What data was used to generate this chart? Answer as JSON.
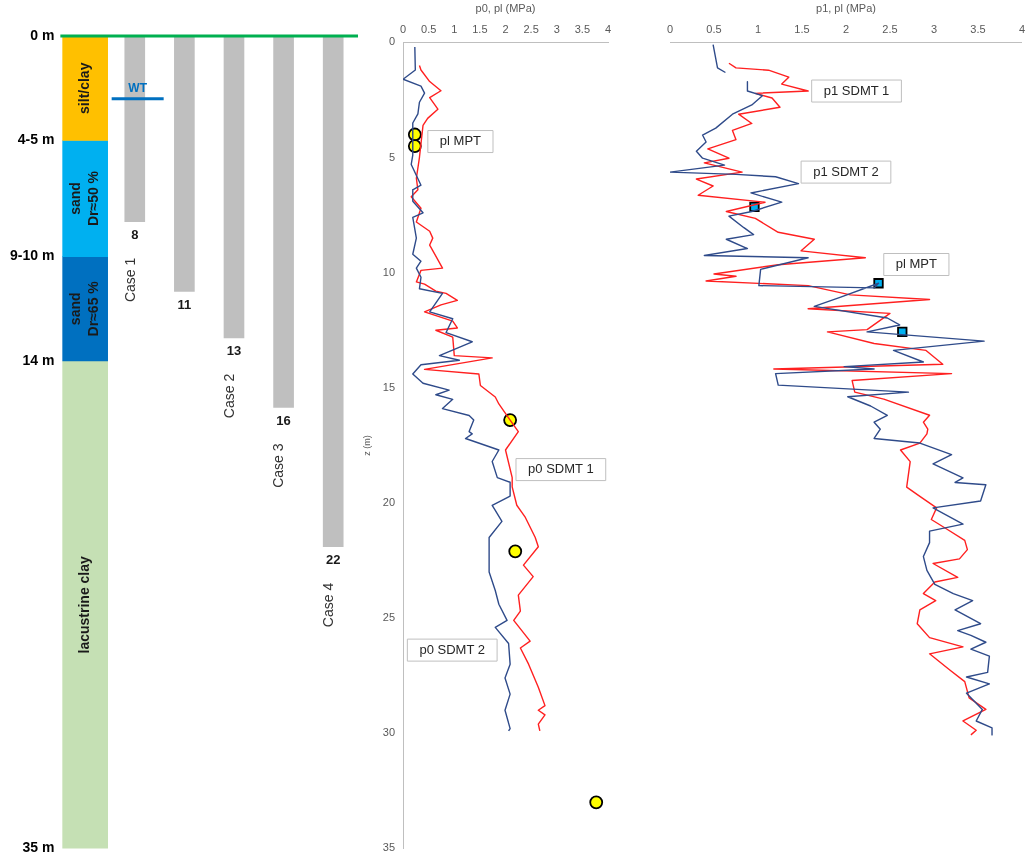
{
  "chart_data": [
    {
      "type": "bar",
      "categories": [
        null,
        "Case 1",
        null,
        "Case 2",
        "Case 3",
        "Case 4"
      ],
      "stacked": true,
      "series": [
        {
          "name": "silt/clay",
          "color": "#ffc000",
          "values": [
            4.5,
            null,
            null,
            null,
            null,
            null
          ]
        },
        {
          "name": "sand Dr≈50 %",
          "color": "#00b0f0",
          "values": [
            5,
            null,
            null,
            null,
            null,
            null
          ]
        },
        {
          "name": "sand Dr≈65 %",
          "color": "#0070c0",
          "values": [
            4.5,
            null,
            null,
            null,
            null,
            null
          ]
        },
        {
          "name": "lacustrine clay",
          "color": "#c5e0b4",
          "values": [
            21,
            null,
            null,
            null,
            null,
            null
          ]
        },
        {
          "color": "#bfbfbf",
          "values": [
            null,
            8,
            11,
            13,
            16,
            22
          ],
          "value_labels": [
            null,
            "8",
            "11",
            "13",
            "16",
            "22"
          ]
        }
      ],
      "ylim": [
        35,
        0
      ],
      "yticks": [
        {
          "value": 0,
          "label": "0 m"
        },
        {
          "value": 4.5,
          "label": "4-5 m"
        },
        {
          "value": 9.5,
          "label": "9-10 m"
        },
        {
          "value": 14,
          "label": "14 m"
        },
        {
          "value": 35,
          "label": "35 m"
        }
      ],
      "ref_lines": [
        {
          "axis": "y",
          "value": 0,
          "color": "#00b050"
        },
        {
          "axis": "y",
          "value": 2.7,
          "label": "WT",
          "color": "#0070c0"
        }
      ]
    },
    {
      "type": "line",
      "xlabel": "p0, pl (MPa)",
      "ylabel": "z (m)",
      "xlim": [
        0,
        4
      ],
      "xticks": [
        0,
        0.5,
        1,
        1.5,
        2,
        2.5,
        3,
        3.5,
        4
      ],
      "ylim": [
        35,
        0
      ],
      "yticks": [
        0,
        5,
        10,
        15,
        20,
        25,
        30,
        35
      ],
      "series": [
        {
          "type": "line",
          "name": "p0 SDMT 2",
          "color": "#2f4b8a",
          "x": [
            0.23,
            0.24,
            0,
            0.35,
            0.42,
            0.32,
            0.29,
            0.19,
            0.19,
            0.16,
            0.35,
            0.19,
            0.19,
            0.39,
            0.19,
            0.26,
            0.19,
            0.35,
            0.26,
            0.35,
            0.32,
            0.77,
            0.52,
            0.97,
            0.84,
            1.35,
            0.71,
            1.1,
            0.35,
            0.19,
            0.39,
            0.9,
            0.64,
            0.97,
            0.77,
            1.29,
            1.38,
            1.29,
            1.35,
            1.22,
            1.87,
            1.74,
            1.84,
            2.09,
            2.09,
            1.74,
            1.93,
            1.68,
            1.68,
            1.8,
            1.87,
            2.03,
            1.8,
            2.06,
            2.09,
            1.99,
            2.09,
            1.99,
            2.09,
            2.06
          ],
          "values": [
            0.2,
            1.2,
            1.6,
            1.9,
            2.2,
            2.6,
            3.1,
            3.5,
            4.9,
            5.3,
            6.2,
            6.4,
            6.9,
            7.4,
            7.6,
            8.5,
            9.2,
            9.5,
            9.8,
            10.2,
            10.7,
            10.9,
            11.7,
            12.0,
            12.6,
            13.0,
            13.6,
            13.8,
            14.0,
            14.4,
            14.8,
            15.1,
            15.3,
            15.5,
            15.9,
            16.2,
            16.4,
            16.9,
            17.0,
            17.2,
            17.7,
            18.2,
            18.9,
            19.1,
            19.7,
            20.1,
            20.8,
            21.5,
            23.0,
            23.8,
            24.4,
            25.1,
            25.4,
            26.1,
            27.0,
            27.6,
            28.3,
            29.0,
            29.8,
            29.9
          ]
        },
        {
          "type": "line",
          "name": "p0 SDMT 1",
          "color": "#ff2020",
          "x": [
            0.32,
            0.35,
            0.52,
            0.74,
            0.52,
            0.68,
            0.48,
            0.39,
            0.32,
            0.26,
            0.29,
            0.16,
            0.35,
            0.26,
            0.52,
            0.58,
            0.52,
            0.77,
            0.35,
            0.26,
            0.42,
            0.64,
            0.84,
            1.06,
            0.74,
            0.42,
            0.97,
            1.06,
            0.64,
            0.97,
            1.0,
            1.74,
            0.42,
            1.48,
            1.51,
            1.8,
            1.87,
            2.09,
            2.25,
            2.0,
            2.13,
            2.13,
            2.22,
            2.38,
            2.58,
            2.64,
            2.35,
            2.54,
            2.25,
            2.29,
            2.16,
            2.48,
            2.29,
            2.45,
            2.64,
            2.77,
            2.64,
            2.77,
            2.64,
            2.67
          ],
          "values": [
            1.0,
            1.2,
            1.7,
            2.1,
            2.4,
            2.9,
            3.3,
            3.6,
            5.0,
            5.9,
            6.4,
            6.7,
            7.2,
            7.8,
            8.2,
            8.5,
            8.8,
            9.8,
            9.9,
            10.4,
            10.5,
            10.8,
            10.9,
            11.2,
            11.4,
            11.7,
            12.1,
            12.4,
            12.5,
            12.8,
            13.6,
            13.7,
            14.2,
            14.4,
            14.9,
            15.4,
            15.7,
            16.4,
            16.9,
            17.7,
            18.9,
            19.3,
            20.1,
            20.6,
            21.5,
            21.9,
            22.7,
            23.2,
            24.0,
            24.7,
            25.1,
            26.0,
            26.3,
            27.0,
            28.0,
            28.8,
            29.0,
            29.2,
            29.6,
            29.9
          ]
        },
        {
          "type": "scatter",
          "name": "pl MPT",
          "marker": "circle",
          "color": "#ffff00",
          "x": [
            0.23,
            0.23,
            2.09,
            2.19,
            3.77
          ],
          "values": [
            4.0,
            4.5,
            16.4,
            22.1,
            33.0
          ]
        }
      ]
    },
    {
      "type": "line",
      "xlabel": "p1, pl (MPa)",
      "xlim": [
        0,
        4
      ],
      "xticks": [
        0,
        0.5,
        1,
        1.5,
        2,
        2.5,
        3,
        3.5,
        4
      ],
      "ylim": [
        35,
        0
      ],
      "yticks": [
        0,
        5,
        10,
        15,
        20,
        25,
        30,
        35
      ],
      "tick_labels": "x",
      "series": [
        {
          "type": "line",
          "name": "p1 SDMT 2",
          "color": "#2f4b8a",
          "x": [
            0.49,
            0.54,
            0.63,
            null,
            0.88,
            0.88,
            1.05,
            0.93,
            0.71,
            0.52,
            0.37,
            0.41,
            0.3,
            0.37,
            0.62,
            0,
            0.75,
            1.2,
            1.46,
            0.92,
            1.27,
            0.93,
            0.67,
            0.84,
            0.95,
            0.64,
            0.88,
            0.39,
            1.57,
            1.03,
            1.01,
            2.32,
            2.37,
            1.94,
            1.64,
            2.47,
            2.61,
            2.24,
            3.57,
            2.54,
            2.88,
            1.98,
            2.32,
            1.2,
            1.23,
            2.71,
            2.02,
            2.28,
            2.47,
            2.32,
            2.39,
            2.32,
            2.84,
            3.2,
            2.99,
            3.33,
            3.24,
            3.59,
            3.53,
            2.99,
            3.33,
            2.95,
            2.95,
            2.88,
            2.92,
            3.01,
            3.22,
            3.44,
            3.24,
            3.53,
            3.27,
            3.42,
            3.59,
            3.42,
            3.63,
            3.61,
            3.37,
            3.63,
            3.37,
            3.55,
            3.48,
            3.66,
            3.66
          ],
          "values": [
            0.1,
            1.1,
            1.3,
            null,
            1.7,
            2.1,
            2.3,
            2.7,
            3.1,
            3.7,
            4.0,
            4.3,
            4.7,
            5.0,
            5.3,
            5.6,
            5.7,
            5.8,
            6.1,
            6.5,
            6.9,
            7.3,
            7.5,
            8.0,
            8.3,
            8.5,
            8.9,
            9.2,
            9.3,
            9.8,
            10.5,
            10.6,
            10.4,
            11.0,
            11.4,
            11.9,
            12.2,
            12.5,
            12.9,
            13.3,
            13.8,
            14.0,
            14.1,
            14.3,
            14.8,
            15.1,
            15.3,
            15.7,
            16.1,
            16.4,
            16.7,
            17.1,
            17.3,
            17.8,
            18.2,
            18.8,
            19.0,
            19.1,
            19.8,
            20.1,
            20.8,
            21.1,
            21.6,
            22.2,
            22.8,
            23.4,
            23.8,
            24.1,
            24.5,
            25.1,
            25.4,
            25.6,
            25.9,
            26.2,
            26.5,
            27.2,
            27.4,
            27.7,
            28.1,
            28.8,
            29.3,
            29.6,
            29.9
          ]
        },
        {
          "type": "line",
          "name": "p1 SDMT 1",
          "color": "#ff2020",
          "x": [
            0.67,
            0.75,
            1.12,
            1.35,
            1.27,
            1.57,
            0.97,
            1.16,
            1.25,
            0.78,
            0.93,
            0.71,
            0.75,
            0.43,
            0.67,
            0.39,
            0.82,
            0.3,
            0.49,
            0.32,
            1.08,
            0.64,
            0.97,
            1.23,
            1.64,
            1.49,
            2.22,
            1.23,
            0.5,
            0.75,
            0.41,
            1.57,
            2.05,
            2.95,
            1.57,
            2.5,
            2.24,
            1.79,
            2.32,
            2.91,
            3.1,
            1.18,
            3.2,
            2.07,
            2.1,
            2.43,
            2.95,
            2.88,
            2.93,
            2.92,
            2.84,
            2.62,
            2.73,
            2.69,
            2.84,
            3.03,
            2.97,
            3.14,
            3.35,
            3.38,
            3.29,
            2.99,
            3.27,
            3.01,
            2.88,
            3.02,
            2.84,
            2.81,
            2.95,
            3.33,
            2.95,
            3.18,
            3.35,
            3.4,
            3.59,
            3.33,
            3.48,
            3.42
          ],
          "values": [
            0.9,
            1.1,
            1.2,
            1.5,
            1.8,
            2.1,
            2.2,
            2.4,
            2.8,
            3.1,
            3.5,
            3.8,
            4.2,
            4.6,
            5.0,
            5.2,
            5.6,
            5.9,
            6.2,
            6.6,
            6.9,
            7.3,
            7.6,
            8.2,
            8.5,
            9.0,
            9.3,
            9.6,
            10.0,
            10.1,
            10.3,
            10.5,
            10.9,
            11.1,
            11.5,
            11.7,
            12.4,
            12.5,
            13.0,
            13.3,
            13.9,
            14.1,
            14.3,
            14.6,
            15.1,
            15.4,
            16.1,
            16.4,
            16.7,
            16.9,
            17.3,
            17.6,
            18.1,
            19.2,
            19.6,
            20.1,
            20.6,
            21.0,
            21.5,
            21.9,
            22.3,
            22.5,
            23.1,
            23.3,
            23.8,
            24.1,
            24.5,
            25.1,
            25.7,
            26.1,
            26.4,
            27.1,
            27.6,
            28.3,
            28.8,
            29.3,
            29.7,
            29.9
          ]
        },
        {
          "type": "scatter",
          "name": "pl MPT",
          "marker": "square",
          "color": "#00b0f0",
          "x": [
            0.96,
            2.37,
            2.64
          ],
          "values": [
            7.1,
            10.4,
            12.5
          ]
        }
      ]
    }
  ]
}
